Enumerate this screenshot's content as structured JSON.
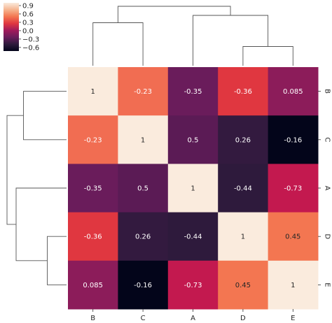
{
  "chart_data": {
    "type": "heatmap",
    "title": "",
    "row_labels": [
      "B",
      "C",
      "A",
      "D",
      "E"
    ],
    "col_labels": [
      "B",
      "C",
      "A",
      "D",
      "E"
    ],
    "values": [
      [
        1,
        -0.23,
        -0.35,
        -0.36,
        0.085
      ],
      [
        -0.23,
        1,
        0.5,
        0.26,
        -0.16
      ],
      [
        -0.35,
        0.5,
        1,
        -0.44,
        -0.73
      ],
      [
        -0.36,
        0.26,
        -0.44,
        1,
        0.45
      ],
      [
        0.085,
        -0.16,
        -0.73,
        0.45,
        1
      ]
    ],
    "cell_labels": [
      [
        "1",
        "-0.23",
        "-0.35",
        "-0.36",
        "0.085"
      ],
      [
        "-0.23",
        "1",
        "0.5",
        "0.26",
        "-0.16"
      ],
      [
        "-0.35",
        "0.5",
        "1",
        "-0.44",
        "-0.73"
      ],
      [
        "-0.36",
        "0.26",
        "-0.44",
        "1",
        "0.45"
      ],
      [
        "0.085",
        "-0.16",
        "-0.73",
        "0.45",
        "1"
      ]
    ],
    "cell_colors": [
      [
        "#faebdd",
        "#f16d52",
        "#6a1c5b",
        "#e03740",
        "#8c1c5a"
      ],
      [
        "#f16d52",
        "#faebdd",
        "#5b1b55",
        "#331a3f",
        "#03051a"
      ],
      [
        "#6a1c5b",
        "#5b1b55",
        "#faebdd",
        "#2e1a3c",
        "#c3194f"
      ],
      [
        "#e03740",
        "#331a3f",
        "#2e1a3c",
        "#faebdd",
        "#f37651"
      ],
      [
        "#8c1c5a",
        "#03051a",
        "#c3194f",
        "#f37651",
        "#faebdd"
      ]
    ],
    "colorbar": {
      "ticks": [
        "0.9",
        "0.6",
        "0.3",
        "0.0",
        "-0.3",
        "-0.6"
      ],
      "range": [
        -0.73,
        1.0
      ],
      "colors": [
        "#03051a",
        "#2e1a3c",
        "#6a1c5b",
        "#a11a5b",
        "#e03740",
        "#f37651",
        "#f6b48f",
        "#faebdd"
      ]
    },
    "dendrogram": {
      "leaf_order": [
        "B",
        "C",
        "A",
        "D",
        "E"
      ],
      "merges": [
        {
          "left": "D",
          "right": "E",
          "height": 0.55
        },
        {
          "left": "B",
          "right": "C",
          "height": 1.23
        },
        {
          "left": "A",
          "right": "DE",
          "height": 1.44
        },
        {
          "left": "BC",
          "right": "ADE",
          "height": 1.7
        }
      ]
    }
  }
}
